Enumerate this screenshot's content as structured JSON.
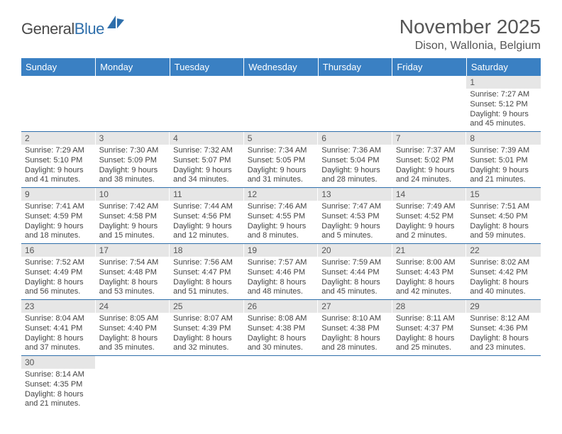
{
  "logo": {
    "general": "General",
    "blue": "Blue"
  },
  "header": {
    "title": "November 2025",
    "location": "Dison, Wallonia, Belgium"
  },
  "colors": {
    "header_bg": "#3a80c3",
    "header_text": "#ffffff",
    "daynum_bg": "#e6e6e6",
    "row_border": "#2f6fab",
    "title_color": "#555555",
    "logo_blue": "#2f6fab"
  },
  "weekdays": [
    "Sunday",
    "Monday",
    "Tuesday",
    "Wednesday",
    "Thursday",
    "Friday",
    "Saturday"
  ],
  "weeks": [
    [
      null,
      null,
      null,
      null,
      null,
      null,
      {
        "n": "1",
        "sr": "7:27 AM",
        "ss": "5:12 PM",
        "dl": "9 hours and 45 minutes."
      }
    ],
    [
      {
        "n": "2",
        "sr": "7:29 AM",
        "ss": "5:10 PM",
        "dl": "9 hours and 41 minutes."
      },
      {
        "n": "3",
        "sr": "7:30 AM",
        "ss": "5:09 PM",
        "dl": "9 hours and 38 minutes."
      },
      {
        "n": "4",
        "sr": "7:32 AM",
        "ss": "5:07 PM",
        "dl": "9 hours and 34 minutes."
      },
      {
        "n": "5",
        "sr": "7:34 AM",
        "ss": "5:05 PM",
        "dl": "9 hours and 31 minutes."
      },
      {
        "n": "6",
        "sr": "7:36 AM",
        "ss": "5:04 PM",
        "dl": "9 hours and 28 minutes."
      },
      {
        "n": "7",
        "sr": "7:37 AM",
        "ss": "5:02 PM",
        "dl": "9 hours and 24 minutes."
      },
      {
        "n": "8",
        "sr": "7:39 AM",
        "ss": "5:01 PM",
        "dl": "9 hours and 21 minutes."
      }
    ],
    [
      {
        "n": "9",
        "sr": "7:41 AM",
        "ss": "4:59 PM",
        "dl": "9 hours and 18 minutes."
      },
      {
        "n": "10",
        "sr": "7:42 AM",
        "ss": "4:58 PM",
        "dl": "9 hours and 15 minutes."
      },
      {
        "n": "11",
        "sr": "7:44 AM",
        "ss": "4:56 PM",
        "dl": "9 hours and 12 minutes."
      },
      {
        "n": "12",
        "sr": "7:46 AM",
        "ss": "4:55 PM",
        "dl": "9 hours and 8 minutes."
      },
      {
        "n": "13",
        "sr": "7:47 AM",
        "ss": "4:53 PM",
        "dl": "9 hours and 5 minutes."
      },
      {
        "n": "14",
        "sr": "7:49 AM",
        "ss": "4:52 PM",
        "dl": "9 hours and 2 minutes."
      },
      {
        "n": "15",
        "sr": "7:51 AM",
        "ss": "4:50 PM",
        "dl": "8 hours and 59 minutes."
      }
    ],
    [
      {
        "n": "16",
        "sr": "7:52 AM",
        "ss": "4:49 PM",
        "dl": "8 hours and 56 minutes."
      },
      {
        "n": "17",
        "sr": "7:54 AM",
        "ss": "4:48 PM",
        "dl": "8 hours and 53 minutes."
      },
      {
        "n": "18",
        "sr": "7:56 AM",
        "ss": "4:47 PM",
        "dl": "8 hours and 51 minutes."
      },
      {
        "n": "19",
        "sr": "7:57 AM",
        "ss": "4:46 PM",
        "dl": "8 hours and 48 minutes."
      },
      {
        "n": "20",
        "sr": "7:59 AM",
        "ss": "4:44 PM",
        "dl": "8 hours and 45 minutes."
      },
      {
        "n": "21",
        "sr": "8:00 AM",
        "ss": "4:43 PM",
        "dl": "8 hours and 42 minutes."
      },
      {
        "n": "22",
        "sr": "8:02 AM",
        "ss": "4:42 PM",
        "dl": "8 hours and 40 minutes."
      }
    ],
    [
      {
        "n": "23",
        "sr": "8:04 AM",
        "ss": "4:41 PM",
        "dl": "8 hours and 37 minutes."
      },
      {
        "n": "24",
        "sr": "8:05 AM",
        "ss": "4:40 PM",
        "dl": "8 hours and 35 minutes."
      },
      {
        "n": "25",
        "sr": "8:07 AM",
        "ss": "4:39 PM",
        "dl": "8 hours and 32 minutes."
      },
      {
        "n": "26",
        "sr": "8:08 AM",
        "ss": "4:38 PM",
        "dl": "8 hours and 30 minutes."
      },
      {
        "n": "27",
        "sr": "8:10 AM",
        "ss": "4:38 PM",
        "dl": "8 hours and 28 minutes."
      },
      {
        "n": "28",
        "sr": "8:11 AM",
        "ss": "4:37 PM",
        "dl": "8 hours and 25 minutes."
      },
      {
        "n": "29",
        "sr": "8:12 AM",
        "ss": "4:36 PM",
        "dl": "8 hours and 23 minutes."
      }
    ],
    [
      {
        "n": "30",
        "sr": "8:14 AM",
        "ss": "4:35 PM",
        "dl": "8 hours and 21 minutes."
      },
      null,
      null,
      null,
      null,
      null,
      null
    ]
  ],
  "labels": {
    "sunrise": "Sunrise:",
    "sunset": "Sunset:",
    "daylight": "Daylight:"
  }
}
